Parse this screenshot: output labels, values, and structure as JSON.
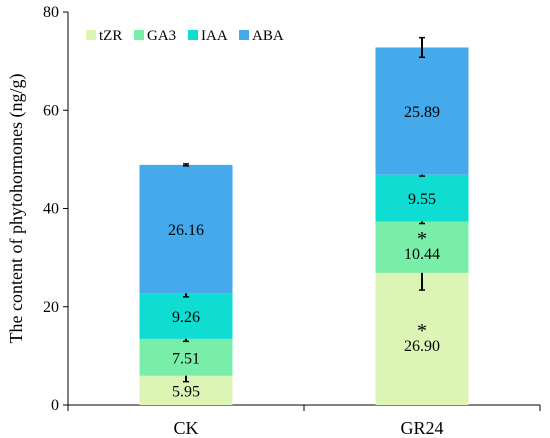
{
  "chart_data": {
    "type": "bar",
    "stacked": true,
    "title": "",
    "xlabel": "",
    "ylabel": "The content of phytohormones (ng/g)",
    "ylim": [
      0,
      80
    ],
    "yticks": [
      0,
      20,
      40,
      60,
      80
    ],
    "categories": [
      "CK",
      "GR24"
    ],
    "legend_position": "top-left",
    "grid": false,
    "series": [
      {
        "name": "tZR",
        "color": "#dcf5b4",
        "values": [
          5.95,
          26.9
        ],
        "value_labels": [
          "5.95",
          "26.90"
        ],
        "errors": [
          1.2,
          3.5
        ],
        "significant": [
          false,
          true
        ]
      },
      {
        "name": "GA3",
        "color": "#78eea8",
        "values": [
          7.51,
          10.44
        ],
        "value_labels": [
          "7.51",
          "10.44"
        ],
        "errors": [
          0.5,
          0.4
        ],
        "significant": [
          false,
          true
        ]
      },
      {
        "name": "IAA",
        "color": "#10ddd2",
        "values": [
          9.26,
          9.55
        ],
        "value_labels": [
          "9.26",
          "9.55"
        ],
        "errors": [
          0.7,
          0.3
        ],
        "significant": [
          false,
          false
        ]
      },
      {
        "name": "ABA",
        "color": "#45aaec",
        "values": [
          26.16,
          25.89
        ],
        "value_labels": [
          "26.16",
          "25.89"
        ],
        "errors": [
          0.2,
          2.0
        ],
        "significant": [
          false,
          false
        ]
      }
    ],
    "significance_marker": "*"
  }
}
